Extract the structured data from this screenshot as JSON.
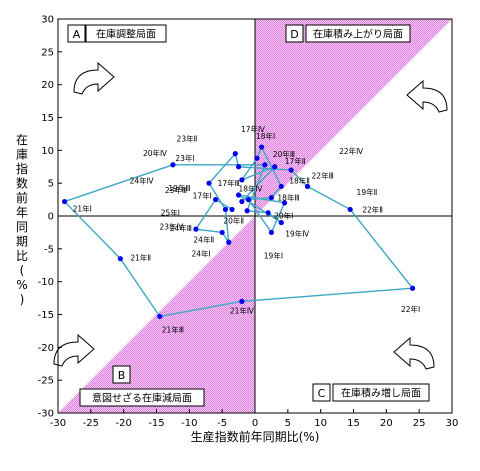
{
  "chart_data": {
    "type": "scatter",
    "xlabel": "生産指数前年同期比(%)",
    "ylabel": "在庫指数前年同期比(%)",
    "xlim": [
      -30,
      30
    ],
    "ylim": [
      -30,
      30
    ],
    "xticks": [
      -30,
      -25,
      -20,
      -15,
      -10,
      -5,
      0,
      5,
      10,
      15,
      20,
      25,
      30
    ],
    "yticks": [
      -30,
      -25,
      -20,
      -15,
      -10,
      -5,
      0,
      5,
      10,
      15,
      20,
      25,
      30
    ],
    "grid": false,
    "line_color": "#3aa8c4",
    "marker_color": "#0000ee",
    "shade_color": "#e07ee0",
    "quadrants": [
      {
        "letter": "A",
        "label": "在庫調整局面"
      },
      {
        "letter": "D",
        "label": "在庫積み上がり局面"
      },
      {
        "letter": "B",
        "label": "意図せざる在庫減局面"
      },
      {
        "letter": "C",
        "label": "在庫積み増し局面"
      }
    ],
    "points": [
      {
        "label": "17年Ⅰ",
        "x": -2.0,
        "y": 2.2
      },
      {
        "label": "17年Ⅱ",
        "x": 3.0,
        "y": 7.5
      },
      {
        "label": "17年Ⅲ",
        "x": -2.0,
        "y": 5.5
      },
      {
        "label": "17年Ⅳ",
        "x": 0.3,
        "y": 8.8
      },
      {
        "label": "18年Ⅰ",
        "x": 1.0,
        "y": 10.5
      },
      {
        "label": "18年Ⅱ",
        "x": 4.0,
        "y": 4.5
      },
      {
        "label": "18年Ⅲ",
        "x": 2.5,
        "y": 2.8
      },
      {
        "label": "18年Ⅳ",
        "x": -1.0,
        "y": 2.5
      },
      {
        "label": "19年Ⅰ",
        "x": 2.5,
        "y": -2.5
      },
      {
        "label": "19年Ⅱ",
        "x": 4.5,
        "y": 2.0
      },
      {
        "label": "19年Ⅲ",
        "x": -2.5,
        "y": 3.2
      },
      {
        "label": "19年Ⅳ",
        "x": 4.0,
        "y": -1.0
      },
      {
        "label": "20年Ⅰ",
        "x": 2.0,
        "y": 0.5
      },
      {
        "label": "20年Ⅱ",
        "x": -1.2,
        "y": 0.8
      },
      {
        "label": "20年Ⅲ",
        "x": 1.5,
        "y": 7.8
      },
      {
        "label": "20年Ⅳ",
        "x": -12.5,
        "y": 7.8
      },
      {
        "label": "21年Ⅰ",
        "x": -29.0,
        "y": 2.2
      },
      {
        "label": "21年Ⅱ",
        "x": -20.5,
        "y": -6.5
      },
      {
        "label": "21年Ⅲ",
        "x": -14.5,
        "y": -15.3
      },
      {
        "label": "21年Ⅳ",
        "x": -2.0,
        "y": -13.0
      },
      {
        "label": "22年Ⅰ",
        "x": 24.0,
        "y": -11.0
      },
      {
        "label": "22年Ⅱ",
        "x": 14.5,
        "y": 1.0
      },
      {
        "label": "22年Ⅲ",
        "x": 8.0,
        "y": 4.5
      },
      {
        "label": "22年Ⅳ",
        "x": 5.5,
        "y": 7.0
      },
      {
        "label": "23年Ⅰ",
        "x": -2.5,
        "y": 7.5
      },
      {
        "label": "23年Ⅱ",
        "x": -3.0,
        "y": 9.5
      },
      {
        "label": "23年Ⅲ",
        "x": -7.0,
        "y": 5.0
      },
      {
        "label": "23年Ⅳ",
        "x": -4.5,
        "y": 1.0
      },
      {
        "label": "24年Ⅰ",
        "x": -4.0,
        "y": -4.0
      },
      {
        "label": "24年Ⅱ",
        "x": -5.0,
        "y": -2.5
      },
      {
        "label": "24年Ⅲ",
        "x": -9.0,
        "y": -2.0
      },
      {
        "label": "24年Ⅳ",
        "x": -6.0,
        "y": 2.5
      },
      {
        "label": "25年Ⅰ",
        "x": -3.5,
        "y": 1.0
      }
    ]
  }
}
